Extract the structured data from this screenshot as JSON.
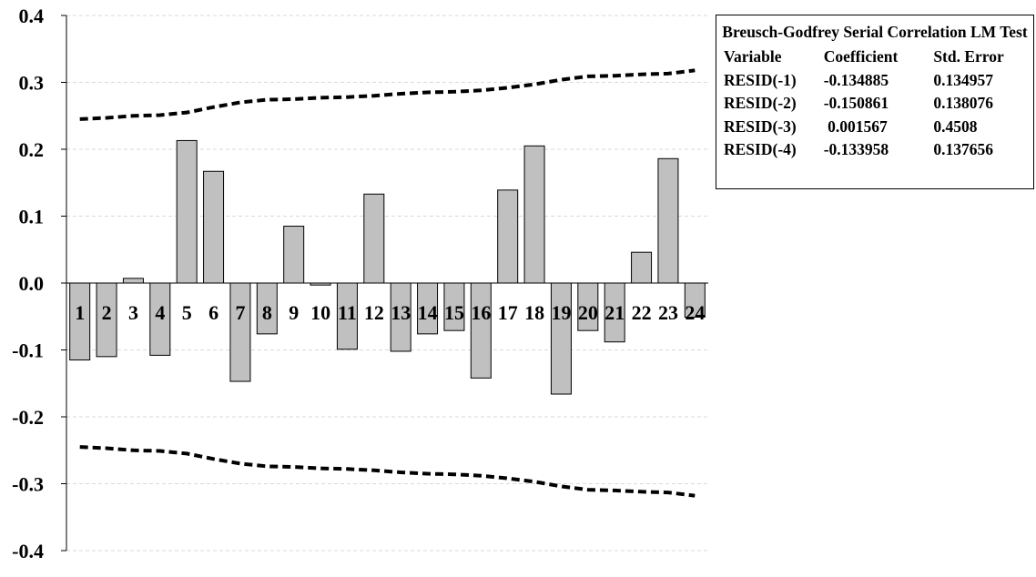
{
  "chart_data": {
    "type": "bar",
    "categories": [
      "1",
      "2",
      "3",
      "4",
      "5",
      "6",
      "7",
      "8",
      "9",
      "10",
      "11",
      "12",
      "13",
      "14",
      "15",
      "16",
      "17",
      "18",
      "19",
      "20",
      "21",
      "22",
      "23",
      "24"
    ],
    "series": [
      {
        "values": [
          -0.115,
          -0.11,
          0.007,
          -0.108,
          0.213,
          0.167,
          -0.147,
          -0.076,
          0.085,
          -0.003,
          -0.099,
          0.133,
          -0.102,
          -0.076,
          -0.071,
          -0.142,
          0.139,
          0.205,
          -0.166,
          -0.071,
          -0.088,
          0.046,
          0.186,
          -0.051
        ]
      }
    ],
    "confidence_upper": [
      0.245,
      0.247,
      0.25,
      0.251,
      0.255,
      0.263,
      0.27,
      0.274,
      0.275,
      0.277,
      0.278,
      0.28,
      0.283,
      0.285,
      0.286,
      0.288,
      0.292,
      0.297,
      0.304,
      0.309,
      0.31,
      0.312,
      0.313,
      0.318
    ],
    "confidence_lower": [
      -0.245,
      -0.247,
      -0.25,
      -0.251,
      -0.255,
      -0.263,
      -0.27,
      -0.274,
      -0.275,
      -0.277,
      -0.278,
      -0.28,
      -0.283,
      -0.285,
      -0.286,
      -0.288,
      -0.292,
      -0.297,
      -0.304,
      -0.309,
      -0.31,
      -0.312,
      -0.313,
      -0.318
    ],
    "yticks": [
      "0.4",
      "0.3",
      "0.2",
      "0.1",
      "0.0",
      "-0.1",
      "-0.2",
      "-0.3",
      "-0.4"
    ],
    "ylim": [
      -0.4,
      0.4
    ],
    "grid": true,
    "legend": "none",
    "colors": {
      "bar_fill": "#c0c0c0",
      "bar_stroke": "#000000",
      "band": "#000000",
      "grid": "#d9d9d9"
    }
  },
  "stats_box": {
    "title": "Breusch-Godfrey  Serial  Correlation LM Test",
    "headers": [
      "Variable",
      "Coefficient",
      "Std. Error"
    ],
    "rows": [
      [
        "RESID(-1)",
        "-0.134885",
        "0.134957"
      ],
      [
        "RESID(-2)",
        "-0.150861",
        "0.138076"
      ],
      [
        "RESID(-3)",
        " 0.001567",
        "0.4508"
      ],
      [
        "RESID(-4)",
        "-0.133958",
        "0.137656"
      ]
    ]
  }
}
